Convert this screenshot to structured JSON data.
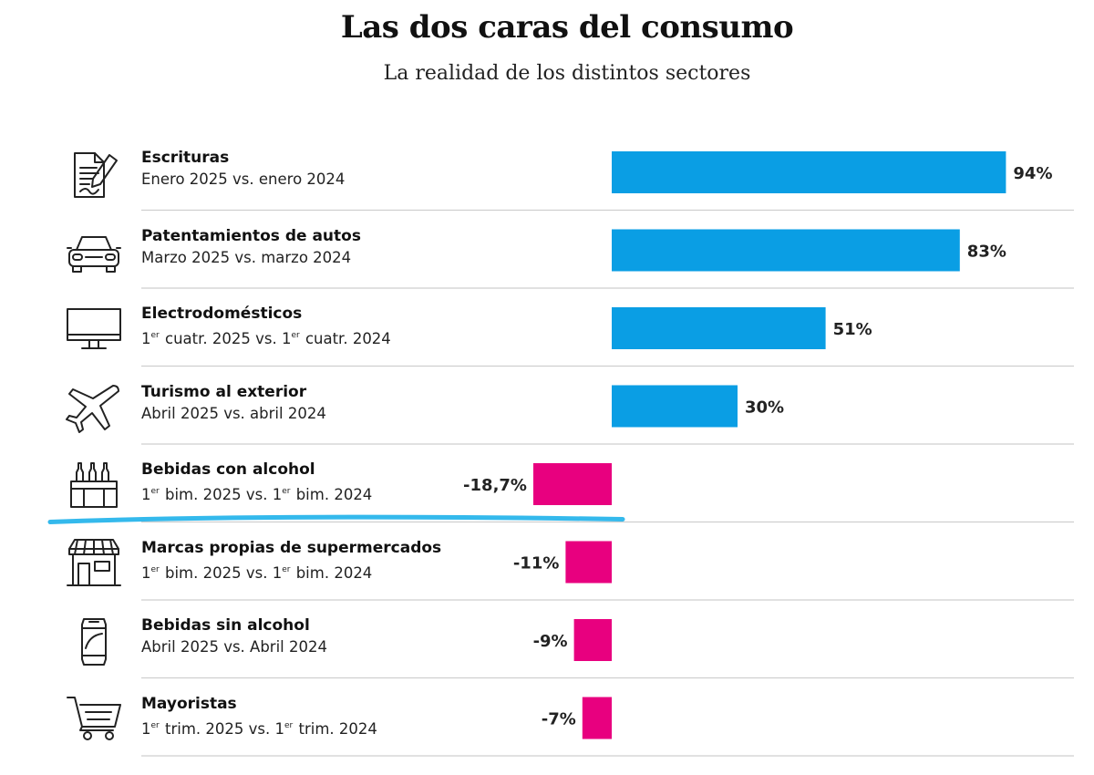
{
  "title": "Las dos caras del consumo",
  "subtitle": "La realidad de los distintos sectores",
  "colors": {
    "positive": "#0a9ee4",
    "negative": "#e8007f",
    "highlight_underline": "#34b9ec",
    "separator": "#cfcfcf"
  },
  "chart_data": {
    "type": "bar",
    "orientation": "horizontal",
    "title": "Las dos caras del consumo",
    "subtitle": "La realidad de los distintos sectores",
    "categories": [
      "Escrituras",
      "Patentamientos de autos",
      "Electrodomésticos",
      "Turismo al exterior",
      "Bebidas con alcohol",
      "Marcas propias de supermercados",
      "Bebidas sin alcohol",
      "Mayoristas"
    ],
    "values": [
      94,
      83,
      51,
      30,
      -18.7,
      -11,
      -9,
      -7
    ],
    "value_labels": [
      "94%",
      "83%",
      "51%",
      "30%",
      "-18,7%",
      "-11%",
      "-9%",
      "-7%"
    ],
    "unit": "%",
    "grid": false,
    "legend": "none"
  },
  "rows": [
    {
      "name": "Escrituras",
      "period": {
        "parts": [
          {
            "t": "Enero 2025 vs. enero 2024"
          }
        ]
      },
      "icon": "document-signature-icon"
    },
    {
      "name": "Patentamientos de autos",
      "period": {
        "parts": [
          {
            "t": "Marzo 2025 vs. marzo 2024"
          }
        ]
      },
      "icon": "car-icon"
    },
    {
      "name": "Electrodomésticos",
      "period": {
        "parts": [
          {
            "t": "1"
          },
          {
            "sup": "er"
          },
          {
            "t": " cuatr. 2025 vs. 1"
          },
          {
            "sup": "er"
          },
          {
            "t": " cuatr. 2024"
          }
        ]
      },
      "icon": "monitor-icon"
    },
    {
      "name": "Turismo al exterior",
      "period": {
        "parts": [
          {
            "t": "Abril 2025 vs. abril 2024"
          }
        ]
      },
      "icon": "airplane-icon"
    },
    {
      "name": "Bebidas con alcohol",
      "period": {
        "parts": [
          {
            "t": "1"
          },
          {
            "sup": "er"
          },
          {
            "t": " bim. 2025 vs. 1"
          },
          {
            "sup": "er"
          },
          {
            "t": " bim. 2024"
          }
        ]
      },
      "icon": "bottle-crate-icon"
    },
    {
      "name": "Marcas propias de supermercados",
      "period": {
        "parts": [
          {
            "t": "1"
          },
          {
            "sup": "er"
          },
          {
            "t": " bim. 2025 vs. 1"
          },
          {
            "sup": "er"
          },
          {
            "t": " bim. 2024"
          }
        ]
      },
      "icon": "storefront-icon"
    },
    {
      "name": "Bebidas sin alcohol",
      "period": {
        "parts": [
          {
            "t": "Abril 2025 vs. Abril 2024"
          }
        ]
      },
      "icon": "soda-can-icon"
    },
    {
      "name": "Mayoristas",
      "period": {
        "parts": [
          {
            "t": "1"
          },
          {
            "sup": "er"
          },
          {
            "t": " trim. 2025 vs. 1"
          },
          {
            "sup": "er"
          },
          {
            "t": " trim. 2024"
          }
        ]
      },
      "icon": "shopping-cart-icon"
    }
  ]
}
